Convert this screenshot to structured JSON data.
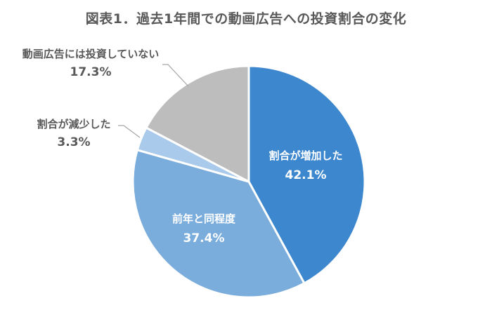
{
  "chart_data": {
    "type": "pie",
    "title": "図表1．過去1年間での動画広告への投資割合の変化",
    "categories": [
      "割合が増加した",
      "前年と同程度",
      "割合が減少した",
      "動画広告には投資していない"
    ],
    "values": [
      42.1,
      37.4,
      3.3,
      17.3
    ],
    "value_labels": [
      "42.1%",
      "37.4%",
      "3.3%",
      "17.3%"
    ],
    "colors": [
      "#3C87CE",
      "#7AACDC",
      "#A9CAEB",
      "#BDBDBD"
    ],
    "start_angle": "12 o'clock, clockwise",
    "legend": "none (data labels)"
  },
  "labels": {
    "increased": {
      "name": "割合が増加した",
      "pct": "42.1%"
    },
    "same": {
      "name": "前年と同程度",
      "pct": "37.4%"
    },
    "decreased": {
      "name": "割合が減少した",
      "pct": "3.3%"
    },
    "none": {
      "name": "動画広告には投資していない",
      "pct": "17.3%"
    }
  }
}
